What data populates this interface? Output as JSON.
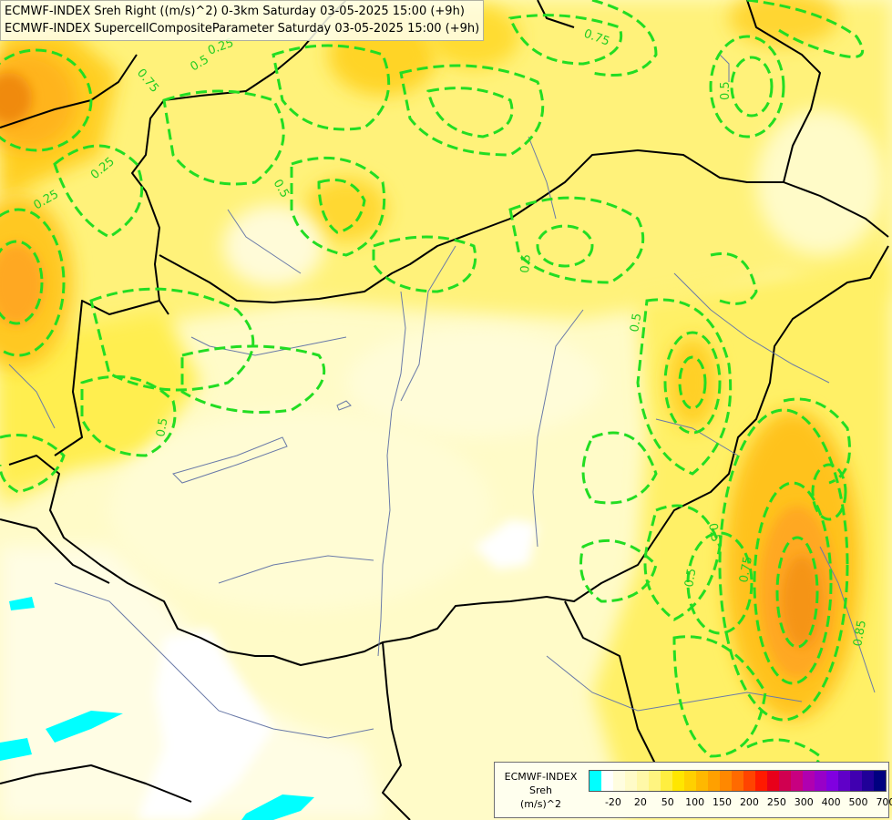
{
  "titles": {
    "line1": "ECMWF-INDEX Sreh Right ((m/s)^2) 0-3km Saturday 03-05-2025 15:00 (+9h)",
    "line2": "ECMWF-INDEX SupercellCompositeParameter Saturday 03-05-2025 15:00 (+9h)"
  },
  "legend": {
    "model": "ECMWF-INDEX",
    "param": "Sreh",
    "unit": "(m/s)^2",
    "colors": [
      "#00ffff",
      "#ffffff",
      "#fffde0",
      "#fffbc8",
      "#fff8a8",
      "#fff480",
      "#ffee40",
      "#ffe600",
      "#ffd000",
      "#ffb800",
      "#ffa000",
      "#ff8800",
      "#ff6a00",
      "#ff4400",
      "#ff1a00",
      "#e8001a",
      "#d00050",
      "#c80080",
      "#b000b0",
      "#9800c8",
      "#8000e0",
      "#6000c8",
      "#4000b0",
      "#200098",
      "#000080"
    ],
    "ticks": [
      {
        "label": "-20",
        "index": 1
      },
      {
        "label": "20",
        "index": 3
      },
      {
        "label": "50",
        "index": 5
      },
      {
        "label": "100",
        "index": 7
      },
      {
        "label": "150",
        "index": 9
      },
      {
        "label": "200",
        "index": 11
      },
      {
        "label": "250",
        "index": 13
      },
      {
        "label": "300",
        "index": 15
      },
      {
        "label": "400",
        "index": 17
      },
      {
        "label": "500",
        "index": 19
      },
      {
        "label": "700",
        "index": 21
      }
    ]
  },
  "contour_labels": [
    "0.25",
    "0.5",
    "0.75",
    "0.25",
    "0.5",
    "0.5",
    "0.25",
    "0.5",
    "0.5",
    "0.5",
    "0.5",
    "0.75",
    "0.75",
    "0.5",
    "0.85"
  ]
}
